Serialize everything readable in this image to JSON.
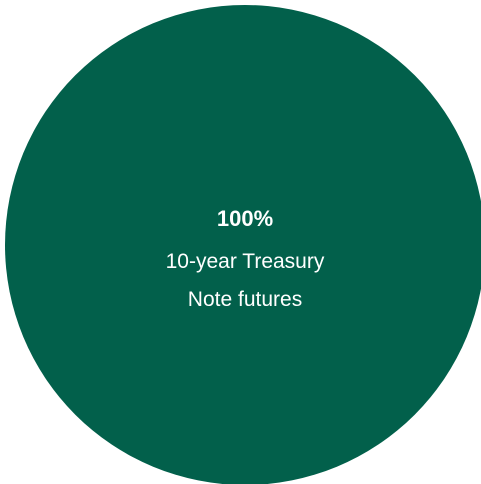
{
  "chart_data": {
    "type": "pie",
    "title": "",
    "slices": [
      {
        "percent_label": "100%",
        "label_lines": [
          "10-year Treasury",
          "Note futures"
        ],
        "value": 100,
        "color": "#02604b"
      }
    ],
    "label_color": "#ffffff"
  }
}
